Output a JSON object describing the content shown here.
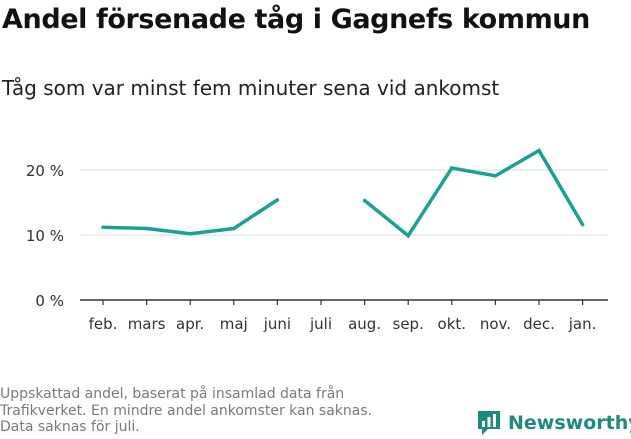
{
  "title": "Andel försenade tåg i Gagnefs kommun",
  "subtitle": "Tåg som var minst fem minuter sena vid ankomst",
  "footnote": [
    "Uppskattad andel, baserat på insamlad data från",
    "Trafikverket. En mindre andel ankomster kan saknas.",
    "Data saknas för juli."
  ],
  "brand": {
    "name": "Newsworthy",
    "logo_icon": "bar-chart-icon"
  },
  "colors": {
    "line": "#1aa193",
    "grid": "#dddddd",
    "axis": "#333333",
    "brand": "#1e8a7c"
  },
  "chart_data": {
    "type": "line",
    "categories": [
      "feb.",
      "mars",
      "apr.",
      "maj",
      "juni",
      "juli",
      "aug.",
      "sep.",
      "okt.",
      "nov.",
      "dec.",
      "jan."
    ],
    "series": [
      {
        "values": [
          11.2,
          11.0,
          10.2,
          11.0,
          15.4,
          null,
          15.3,
          9.9,
          20.3,
          19.1,
          23.0,
          11.6
        ]
      }
    ],
    "y_ticks": [
      0,
      10,
      20
    ],
    "y_tick_labels": [
      "0 %",
      "10 %",
      "20 %"
    ],
    "ylim": [
      0,
      25
    ],
    "grid": true,
    "legend": false
  }
}
